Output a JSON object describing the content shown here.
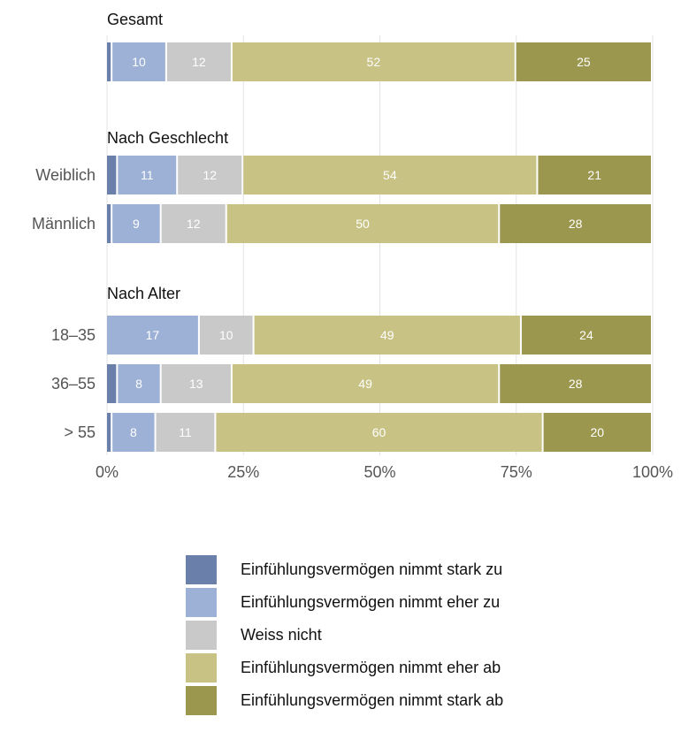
{
  "chart_data": {
    "type": "bar",
    "orientation": "horizontal",
    "stacked": true,
    "xlim": [
      0,
      100
    ],
    "x_ticks": [
      "0%",
      "25%",
      "50%",
      "75%",
      "100%"
    ],
    "grid": "vertical",
    "legend_position": "bottom",
    "categories_order": [
      "Einfühlungsvermögen nimmt stark zu",
      "Einfühlungsvermögen nimmt eher zu",
      "Weiss nicht",
      "Einfühlungsvermögen nimmt eher ab",
      "Einfühlungsvermögen nimmt stark ab"
    ],
    "colors": [
      "#6a7faa",
      "#9db1d7",
      "#c9c9c9",
      "#c8c284",
      "#9c974f"
    ],
    "groups": [
      {
        "title": "Gesamt",
        "rows": [
          {
            "label": "",
            "values": [
              1,
              10,
              12,
              52,
              25
            ]
          }
        ]
      },
      {
        "title": "Nach Geschlecht",
        "rows": [
          {
            "label": "Weiblich",
            "values": [
              2,
              11,
              12,
              54,
              21
            ]
          },
          {
            "label": "Männlich",
            "values": [
              1,
              9,
              12,
              50,
              28
            ]
          }
        ]
      },
      {
        "title": "Nach Alter",
        "rows": [
          {
            "label": "18–35",
            "values": [
              0,
              17,
              10,
              49,
              24
            ]
          },
          {
            "label": "36–55",
            "values": [
              2,
              8,
              13,
              49,
              28
            ]
          },
          {
            "label": "> 55",
            "values": [
              1,
              8,
              11,
              60,
              20
            ]
          }
        ]
      }
    ]
  },
  "legend": [
    {
      "label": "Einfühlungsvermögen nimmt stark zu",
      "color": "#6a7faa"
    },
    {
      "label": "Einfühlungsvermögen nimmt eher zu",
      "color": "#9db1d7"
    },
    {
      "label": "Weiss nicht",
      "color": "#c9c9c9"
    },
    {
      "label": "Einfühlungsvermögen nimmt eher ab",
      "color": "#c8c284"
    },
    {
      "label": "Einfühlungsvermögen nimmt stark ab",
      "color": "#9c974f"
    }
  ]
}
